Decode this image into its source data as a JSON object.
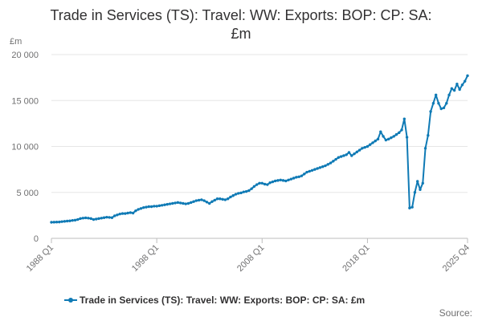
{
  "chart_data": {
    "type": "line",
    "title_line1": "Trade in Services (TS): Travel: WW: Exports: BOP: CP: SA:",
    "title_line2": "£m",
    "unit_label": "£m",
    "x_tick_labels": [
      "1988 Q1",
      "1998 Q1",
      "2008 Q1",
      "2018 Q1",
      "2025 Q4"
    ],
    "y_tick_labels": [
      "0",
      "5 000",
      "10 000",
      "15 000",
      "20 000"
    ],
    "y_ticks": [
      0,
      5000,
      10000,
      15000,
      20000
    ],
    "ylim": [
      0,
      20000
    ],
    "x_start": "1988 Q1",
    "grid": "horizontal",
    "legend_position": "bottom",
    "color": "#0f7ab5",
    "series": [
      {
        "name": "Trade in Services (TS): Travel: WW: Exports: BOP: CP: SA: £m",
        "values": [
          1750,
          1760,
          1770,
          1780,
          1820,
          1850,
          1880,
          1900,
          1950,
          1980,
          2050,
          2150,
          2200,
          2230,
          2200,
          2150,
          2050,
          2100,
          2150,
          2200,
          2250,
          2300,
          2280,
          2250,
          2450,
          2550,
          2650,
          2700,
          2700,
          2750,
          2800,
          2750,
          3000,
          3150,
          3250,
          3350,
          3400,
          3450,
          3450,
          3500,
          3500,
          3550,
          3600,
          3650,
          3700,
          3750,
          3800,
          3850,
          3900,
          3850,
          3800,
          3750,
          3800,
          3900,
          4000,
          4100,
          4150,
          4200,
          4100,
          3950,
          3800,
          4000,
          4150,
          4300,
          4300,
          4250,
          4200,
          4300,
          4500,
          4650,
          4800,
          4900,
          4950,
          5050,
          5100,
          5200,
          5400,
          5650,
          5850,
          6000,
          6000,
          5900,
          5850,
          6050,
          6150,
          6250,
          6300,
          6350,
          6300,
          6250,
          6350,
          6450,
          6550,
          6650,
          6700,
          6800,
          7000,
          7200,
          7300,
          7400,
          7500,
          7600,
          7700,
          7800,
          7900,
          8050,
          8200,
          8400,
          8600,
          8800,
          8900,
          9000,
          9100,
          9350,
          9000,
          9200,
          9400,
          9600,
          9800,
          9900,
          10000,
          10200,
          10400,
          10600,
          10800,
          11600,
          11100,
          10700,
          10800,
          10950,
          11100,
          11300,
          11500,
          11800,
          13000,
          11000,
          3300,
          3400,
          5000,
          6200,
          5300,
          6000,
          9800,
          11200,
          13800,
          14700,
          15600,
          14700,
          14100,
          14200,
          14700,
          15600,
          16300,
          16100,
          16800,
          16200,
          16700,
          17100,
          17700
        ]
      }
    ]
  },
  "source_label": "Source:"
}
